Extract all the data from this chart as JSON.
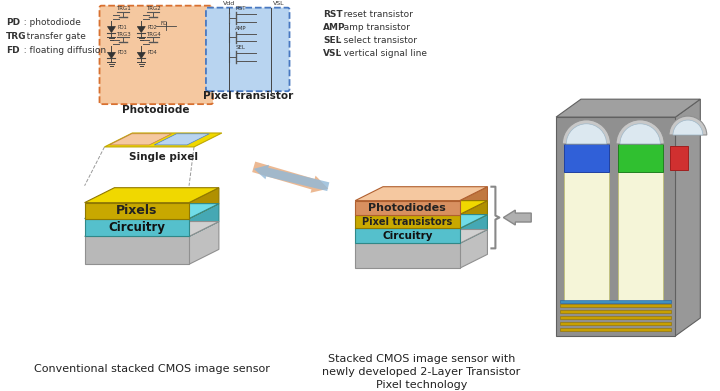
{
  "bg_color": "#ffffff",
  "left_labels": [
    [
      "PD",
      "  : photodiode"
    ],
    [
      "TRG",
      " : transfer gate"
    ],
    [
      "FD",
      "  : floating diffusion"
    ]
  ],
  "right_labels": [
    [
      "RST",
      " : reset transistor"
    ],
    [
      "AMP",
      " : amp transistor"
    ],
    [
      "SEL",
      " : select transistor"
    ],
    [
      "VSL",
      " : vertical signal line"
    ]
  ],
  "photodiode_box_color": "#f5c8a0",
  "pixel_transistor_box_color": "#b8d4f0",
  "circuit_border_color": "#d87030",
  "pixel_trans_border_color": "#4878c0",
  "single_pixel_label": "Single pixel",
  "pixel_chip_label": "Pixels",
  "circuitry_label": "Circuitry",
  "photodiodes_label": "Photodiodes",
  "pixel_transistors_label": "Pixel transistors",
  "circuitry2_label": "Circuitry",
  "conv_label": "Conventional stacked CMOS image sensor",
  "new_label1": "Stacked CMOS image sensor with",
  "new_label2": "newly developed 2-Layer Transistor",
  "new_label3": "Pixel technology",
  "photodiode_label": "Photodiode",
  "pixel_transistor_label": "Pixel transistor",
  "yellow_color": "#f0d800",
  "cyan_color": "#70dce8",
  "arrow_orange": "#e8a878",
  "arrow_blue": "#90b8d8",
  "arrow_gray": "#b0b0b0"
}
